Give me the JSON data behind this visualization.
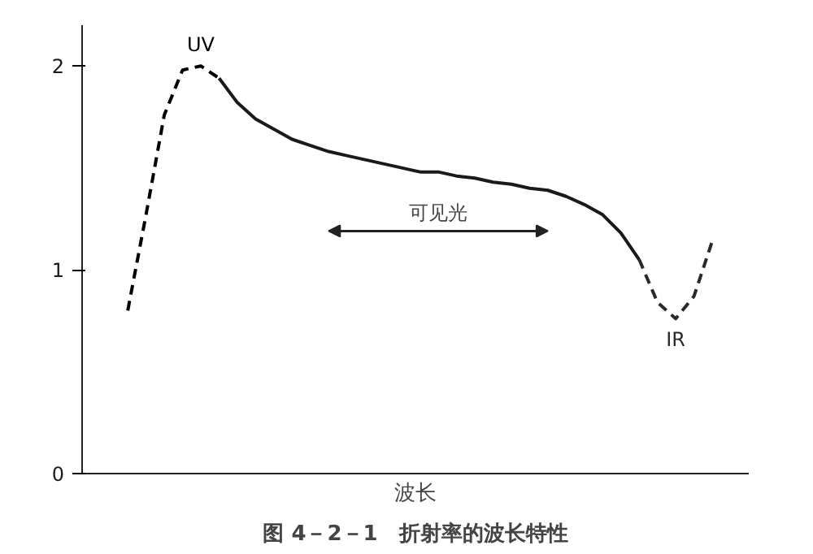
{
  "chart_data": {
    "type": "line",
    "title": "图 4－2－1　折射率的波长特性",
    "xlabel": "波长",
    "categories": [
      null,
      null,
      null,
      null,
      null,
      null,
      null,
      null,
      null,
      null,
      null,
      null,
      null,
      null,
      null,
      null,
      null,
      null,
      null,
      null,
      null,
      null,
      null,
      null,
      null,
      null,
      null,
      null,
      null,
      null,
      null,
      null,
      null
    ],
    "ylim": [
      0,
      2.2
    ],
    "yticks": [
      0,
      1,
      2
    ],
    "tick_labels": "y",
    "marker": "none",
    "grid": false,
    "series": [
      {
        "name": "UV",
        "color": "#000000",
        "line_style": "dashed",
        "values": [
          0.8,
          1.27,
          1.76,
          1.98,
          2.0,
          1.94,
          null,
          null,
          null,
          null,
          null,
          null,
          null,
          null,
          null,
          null,
          null,
          null,
          null,
          null,
          null,
          null,
          null,
          null,
          null,
          null,
          null,
          null,
          null,
          null,
          null,
          null,
          null
        ]
      },
      {
        "color": "#1a1a1a",
        "line_style": "solid",
        "values": [
          null,
          null,
          null,
          null,
          null,
          1.94,
          1.82,
          1.74,
          1.69,
          1.64,
          1.61,
          1.58,
          1.56,
          1.54,
          1.52,
          1.5,
          1.48,
          1.48,
          1.46,
          1.45,
          1.43,
          1.42,
          1.4,
          1.39,
          1.36,
          1.32,
          1.27,
          1.18,
          1.05,
          null,
          null,
          null,
          null
        ]
      },
      {
        "name": "IR",
        "color": "#2a2a2a",
        "line_style": "dashed",
        "values": [
          null,
          null,
          null,
          null,
          null,
          null,
          null,
          null,
          null,
          null,
          null,
          null,
          null,
          null,
          null,
          null,
          null,
          null,
          null,
          null,
          null,
          null,
          null,
          null,
          null,
          null,
          null,
          null,
          1.05,
          0.84,
          0.76,
          0.87,
          1.14
        ]
      }
    ],
    "annotations": [
      "可见光"
    ]
  }
}
